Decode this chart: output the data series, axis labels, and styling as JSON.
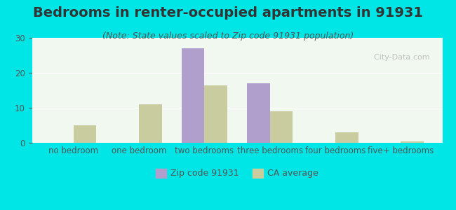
{
  "title": "Bedrooms in renter-occupied apartments in 91931",
  "subtitle": "(Note: State values scaled to Zip code 91931 population)",
  "categories": [
    "no bedroom",
    "one bedroom",
    "two bedrooms",
    "three bedrooms",
    "four bedrooms",
    "five+ bedrooms"
  ],
  "zip_values": [
    0,
    0,
    27,
    17,
    0,
    0
  ],
  "ca_values": [
    5,
    11,
    16.5,
    9,
    3,
    0.5
  ],
  "zip_color": "#b09fcc",
  "ca_color": "#c8cc9f",
  "background_outer": "#00e5e5",
  "background_inner": "#f0f8f0",
  "ylim": [
    0,
    30
  ],
  "yticks": [
    0,
    10,
    20,
    30
  ],
  "bar_width": 0.35,
  "legend_zip_label": "Zip code 91931",
  "legend_ca_label": "CA average",
  "title_fontsize": 14,
  "subtitle_fontsize": 9,
  "tick_fontsize": 8.5
}
